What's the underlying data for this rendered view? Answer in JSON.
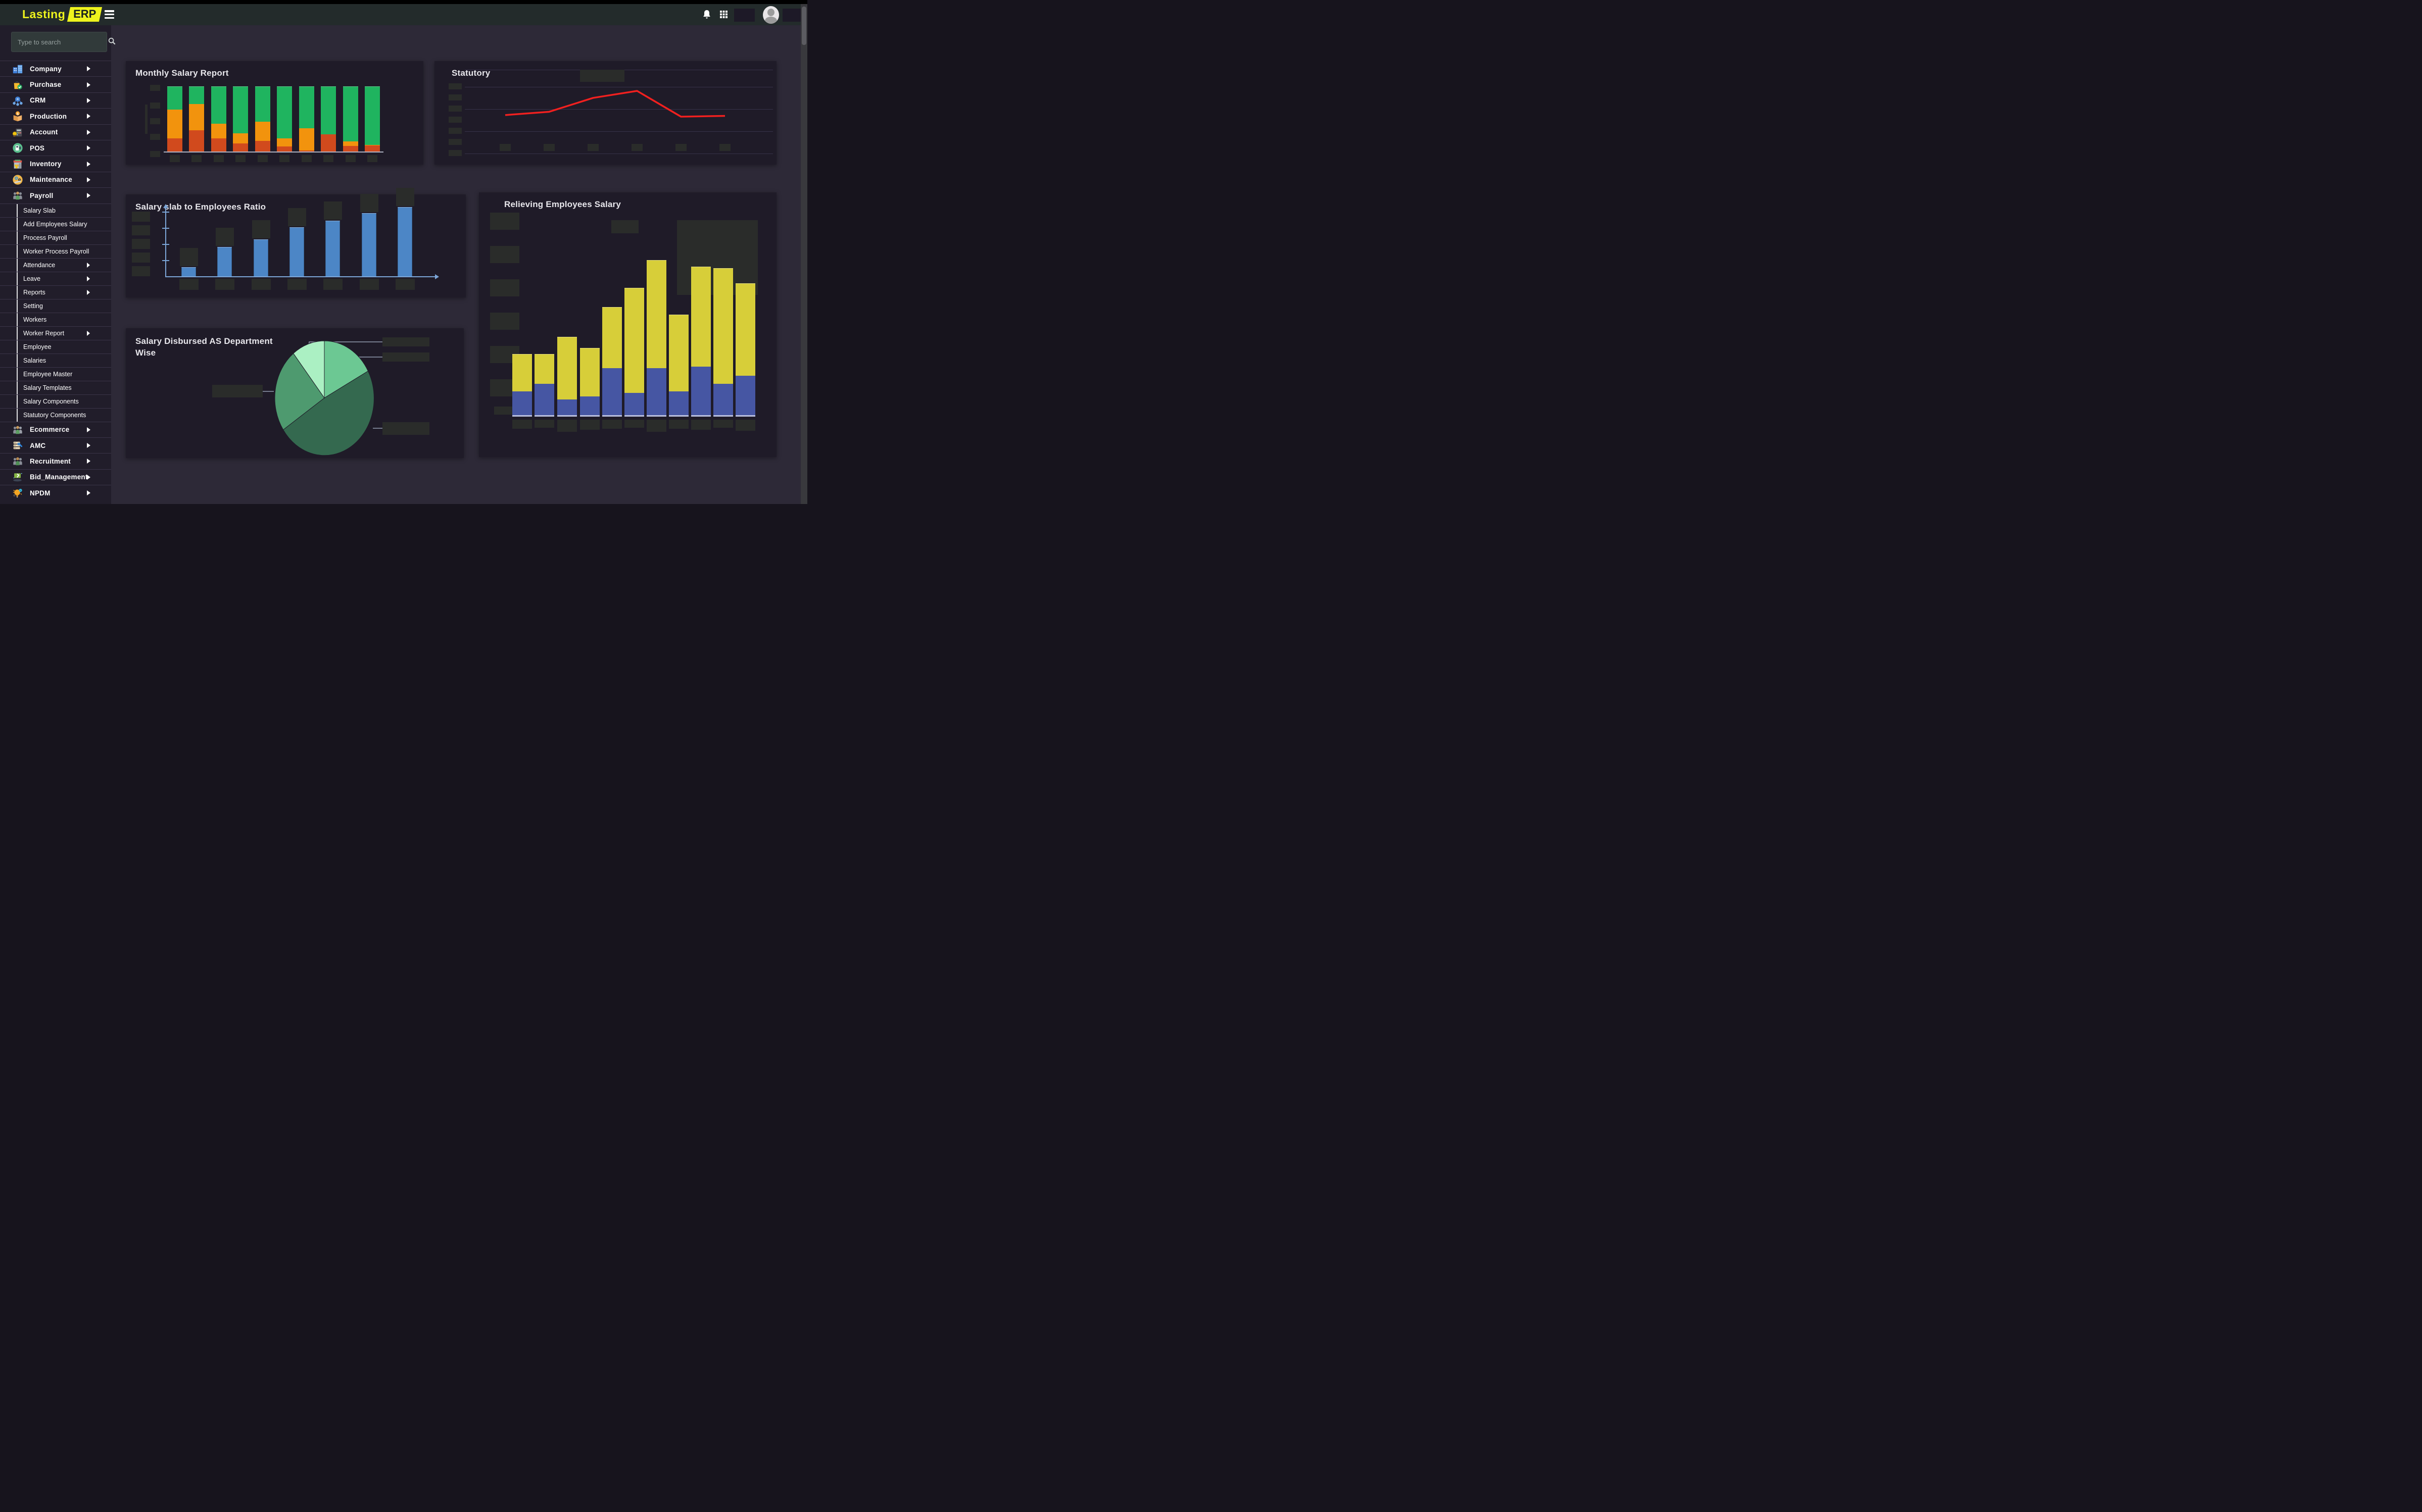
{
  "header": {
    "logo_text": "Lasting",
    "logo_badge": "ERP",
    "menu_toggle_icon": "hamburger-icon",
    "right_icons": [
      "bell-icon",
      "apps-grid-icon",
      "user-avatar"
    ]
  },
  "sidebar": {
    "search_placeholder": "Type to search",
    "search_icon": "search-icon",
    "items": [
      {
        "label": "Company",
        "icon": "company",
        "expandable": true
      },
      {
        "label": "Purchase",
        "icon": "purchase",
        "expandable": true
      },
      {
        "label": "CRM",
        "icon": "crm",
        "expandable": true
      },
      {
        "label": "Production",
        "icon": "production",
        "expandable": true
      },
      {
        "label": "Account",
        "icon": "account",
        "expandable": true
      },
      {
        "label": "POS",
        "icon": "pos",
        "expandable": true
      },
      {
        "label": "Inventory",
        "icon": "inventory",
        "expandable": true
      },
      {
        "label": "Maintenance",
        "icon": "maintenance",
        "expandable": true
      },
      {
        "label": "Payroll",
        "icon": "payroll",
        "expandable": true,
        "expanded": true,
        "submenu": [
          {
            "label": "Salary Slab"
          },
          {
            "label": "Add Employees Salary"
          },
          {
            "label": "Process Payroll"
          },
          {
            "label": "Worker Process Payroll"
          },
          {
            "label": "Attendance",
            "expandable": true
          },
          {
            "label": "Leave",
            "expandable": true
          },
          {
            "label": "Reports",
            "expandable": true
          },
          {
            "label": "Setting"
          },
          {
            "label": "Workers"
          },
          {
            "label": "Worker Report",
            "expandable": true
          },
          {
            "label": "Employee"
          },
          {
            "label": "Salaries"
          },
          {
            "label": "Employee Master"
          },
          {
            "label": "Salary Templates"
          },
          {
            "label": "Salary Components"
          },
          {
            "label": "Statutory Components"
          }
        ]
      },
      {
        "label": "Ecommerce",
        "icon": "ecommerce",
        "expandable": true
      },
      {
        "label": "AMC",
        "icon": "amc",
        "expandable": true
      },
      {
        "label": "Recruitment",
        "icon": "recruitment",
        "expandable": true
      },
      {
        "label": "Bid_Management",
        "icon": "bid_management",
        "expandable": true
      },
      {
        "label": "NPDM",
        "icon": "npdm",
        "expandable": true
      }
    ]
  },
  "chart_data": [
    {
      "id": "monthly_salary_report",
      "type": "bar",
      "stacked": true,
      "title": "Monthly Salary Report",
      "categories": [
        "",
        "",
        "",
        "",
        "",
        "",
        "",
        "",
        "",
        ""
      ],
      "axis_labels_are_placeholders": true,
      "ylim": [
        0,
        100
      ],
      "series": [
        {
          "name": "segment-lower",
          "color": "#d14a1d",
          "values": [
            20,
            32.5,
            20,
            12.5,
            16.5,
            8,
            1.5,
            26,
            8.5,
            9.5
          ]
        },
        {
          "name": "segment-middle",
          "color": "#f2930d",
          "values": [
            44.5,
            40,
            22.5,
            15.5,
            29,
            12,
            34.5,
            0,
            7,
            0.5
          ]
        },
        {
          "name": "segment-upper",
          "color": "#1fb45f",
          "values": [
            35.5,
            27.5,
            57.5,
            72,
            54.5,
            80,
            64,
            74,
            84.5,
            90
          ]
        }
      ]
    },
    {
      "id": "statutory",
      "type": "line",
      "title": "Statutory",
      "categories": [
        "",
        "",
        "",
        "",
        "",
        ""
      ],
      "axis_labels_are_placeholders": true,
      "legend_is_placeholder": true,
      "grid": true,
      "ylim": [
        0,
        100
      ],
      "line_color": "#f1201f",
      "values": [
        39,
        43,
        60,
        68.5,
        37,
        38
      ]
    },
    {
      "id": "salary_slab_to_employees_ratio",
      "type": "bar",
      "title": "Salary slab to Employees Ratio",
      "categories": [
        "",
        "",
        "",
        "",
        "",
        "",
        ""
      ],
      "axis_labels_are_placeholders": true,
      "ylim": [
        0,
        100
      ],
      "bar_color": "#4c86c6",
      "axis_color": "#7ca6d8",
      "values": [
        13,
        42,
        53,
        71,
        80,
        91,
        100
      ]
    },
    {
      "id": "salary_disbursed_as_department_wise",
      "type": "pie",
      "title": "Salary Disbursed AS Department Wise",
      "legend_is_placeholder": true,
      "direction": "clockwise",
      "start_angle_deg": 0,
      "slices": [
        {
          "label": "16%",
          "value": 16,
          "color": "#6cc893"
        },
        {
          "label": "45%",
          "value": 45,
          "color": "#34694f"
        },
        {
          "label": "22%",
          "value": 22,
          "color": "#4e9a6f"
        },
        {
          "label": "10%",
          "value": 10,
          "color": "#abf0c3"
        }
      ]
    },
    {
      "id": "relieving_employees_salary",
      "type": "bar",
      "stacked": true,
      "title": "Relieving Employees Salary",
      "categories": [
        "",
        "",
        "",
        "",
        "",
        "",
        "",
        "",
        "",
        "",
        ""
      ],
      "axis_labels_are_placeholders": true,
      "legend_is_placeholder": true,
      "ylim": [
        0,
        100
      ],
      "series": [
        {
          "name": "segment-bottom",
          "color": "#4656a3",
          "values": [
            16,
            21,
            11,
            13,
            31,
            15,
            31,
            16,
            32,
            21,
            26
          ]
        },
        {
          "name": "segment-top",
          "color": "#d7ce39",
          "values": [
            24,
            19,
            40,
            31,
            39,
            67,
            69,
            49,
            64,
            74,
            59
          ]
        }
      ]
    }
  ],
  "theme": {
    "topstrip": "#000000",
    "header_bg": "#232b2b",
    "sidebar_bg": "#211d2a",
    "main_bg": "#2d2937",
    "card_bg": "#1f1b28",
    "placeholder_box": "#2a2c2a",
    "accent_yellow": "#eef31d",
    "text": "#ffffff"
  }
}
